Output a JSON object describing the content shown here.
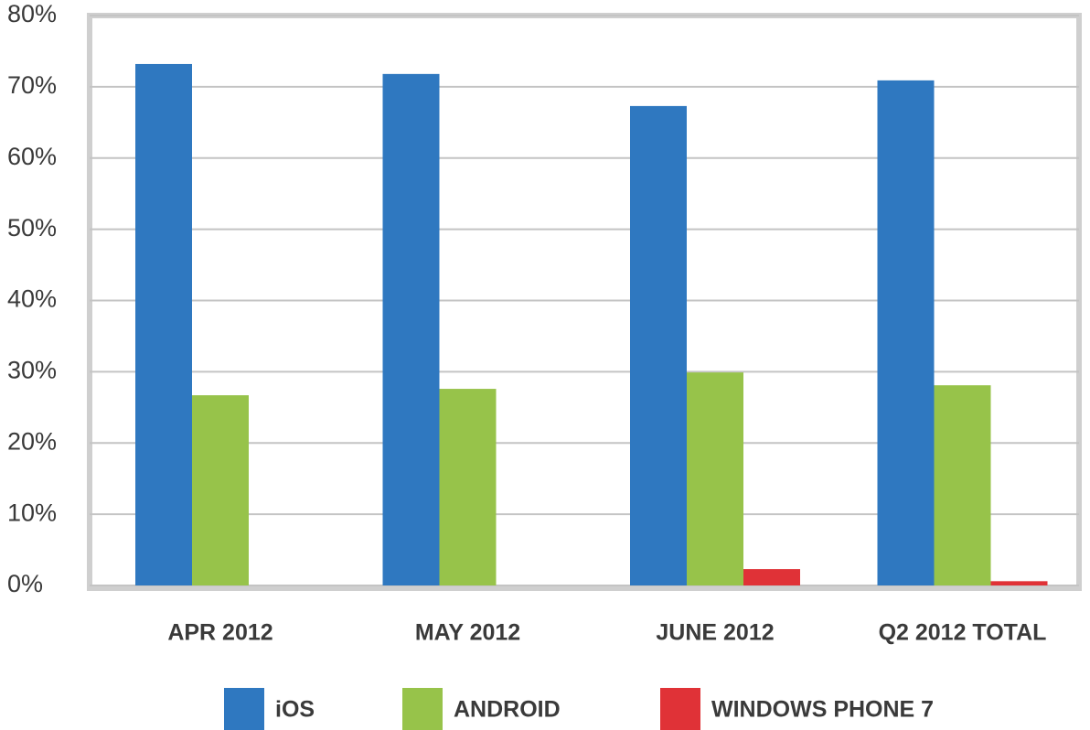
{
  "chart_data": {
    "type": "bar",
    "categories": [
      "APR 2012",
      "MAY 2012",
      "JUNE 2012",
      "Q2 2012 TOTAL"
    ],
    "series": [
      {
        "name": "iOS",
        "color": "#2f78c0",
        "values": [
          73.2,
          71.8,
          67.3,
          70.9
        ]
      },
      {
        "name": "ANDROID",
        "color": "#97c34a",
        "values": [
          26.7,
          27.6,
          29.9,
          28.1
        ]
      },
      {
        "name": "WINDOWS PHONE 7",
        "color": "#e03237",
        "values": [
          0,
          0,
          2.3,
          0.6
        ]
      }
    ],
    "ylim": [
      0,
      80
    ],
    "yticks": [
      {
        "value": 0,
        "label": "0%"
      },
      {
        "value": 10,
        "label": "10%"
      },
      {
        "value": 20,
        "label": "20%"
      },
      {
        "value": 30,
        "label": "30%"
      },
      {
        "value": 40,
        "label": "40%"
      },
      {
        "value": 50,
        "label": "50%"
      },
      {
        "value": 60,
        "label": "60%"
      },
      {
        "value": 70,
        "label": "70%"
      },
      {
        "value": 80,
        "label": "80%"
      }
    ],
    "grid": true,
    "legend": "bottom"
  }
}
